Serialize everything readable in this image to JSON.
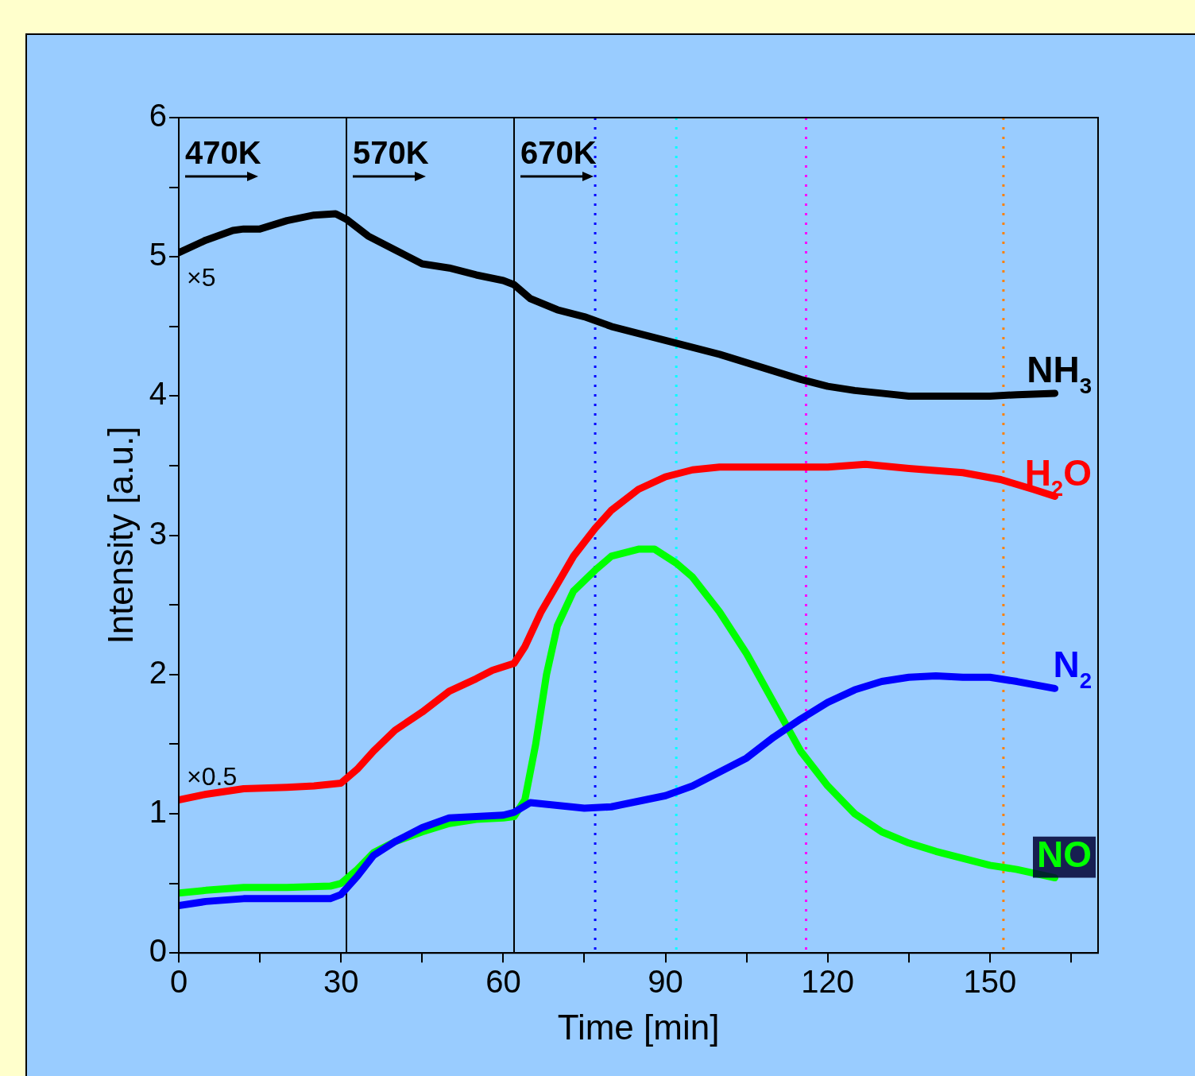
{
  "chart_data": {
    "type": "line",
    "xlabel": "Time [min]",
    "ylabel": "Intensity [a.u.]",
    "xlim": [
      0,
      170
    ],
    "xticks": [
      0,
      {
        "value": 15,
        "label": null
      },
      30,
      {
        "value": 45,
        "label": null
      },
      60,
      {
        "value": 75,
        "label": null
      },
      90,
      {
        "value": 105,
        "label": null
      },
      120,
      {
        "value": 135,
        "label": null
      },
      150,
      {
        "value": 165,
        "label": null
      }
    ],
    "ylim": [
      0,
      6
    ],
    "yticks": [
      0,
      {
        "value": 0.5,
        "label": null
      },
      1,
      {
        "value": 1.5,
        "label": null
      },
      2,
      {
        "value": 2.5,
        "label": null
      },
      3,
      {
        "value": 3.5,
        "label": null
      },
      4,
      {
        "value": 4.5,
        "label": null
      },
      5,
      {
        "value": 5.5,
        "label": null
      },
      6
    ],
    "grid": false,
    "legend": false,
    "marker": "none",
    "line_style": "solid",
    "series": [
      {
        "name": "NH$_{3}$",
        "color": "#000000",
        "x": [
          0,
          5,
          10,
          12,
          15,
          20,
          25,
          29,
          31,
          35,
          40,
          45,
          50,
          55,
          60,
          62,
          65,
          70,
          75,
          80,
          85,
          90,
          95,
          100,
          105,
          110,
          115,
          120,
          125,
          130,
          135,
          140,
          145,
          150,
          155,
          162
        ],
        "values": [
          5.03,
          5.12,
          5.19,
          5.2,
          5.2,
          5.26,
          5.3,
          5.31,
          5.27,
          5.15,
          5.05,
          4.95,
          4.92,
          4.87,
          4.83,
          4.8,
          4.7,
          4.62,
          4.57,
          4.5,
          4.45,
          4.4,
          4.35,
          4.3,
          4.24,
          4.18,
          4.12,
          4.07,
          4.04,
          4.02,
          4.0,
          4.0,
          4.0,
          4.0,
          4.01,
          4.02
        ]
      },
      {
        "name": "H$_{2}$O",
        "color": "#ff0000",
        "x": [
          0,
          5,
          12,
          20,
          25,
          30,
          33,
          36,
          40,
          45,
          50,
          55,
          58,
          62,
          64,
          67,
          70,
          73,
          77,
          80,
          85,
          90,
          95,
          100,
          110,
          120,
          127,
          135,
          145,
          152,
          158,
          162
        ],
        "values": [
          1.1,
          1.14,
          1.18,
          1.19,
          1.2,
          1.22,
          1.32,
          1.45,
          1.6,
          1.73,
          1.88,
          1.97,
          2.03,
          2.08,
          2.2,
          2.45,
          2.65,
          2.85,
          3.05,
          3.18,
          3.33,
          3.42,
          3.47,
          3.49,
          3.49,
          3.49,
          3.51,
          3.48,
          3.45,
          3.4,
          3.33,
          3.28
        ]
      },
      {
        "name": "N$_{2}$",
        "color": "#0000ff",
        "x": [
          0,
          5,
          12,
          20,
          28,
          30,
          33,
          36,
          40,
          45,
          50,
          55,
          60,
          62,
          65,
          70,
          75,
          80,
          85,
          90,
          95,
          100,
          105,
          110,
          115,
          120,
          125,
          130,
          135,
          140,
          145,
          150,
          155,
          162
        ],
        "values": [
          0.34,
          0.37,
          0.39,
          0.39,
          0.39,
          0.42,
          0.55,
          0.7,
          0.8,
          0.9,
          0.97,
          0.98,
          0.99,
          1.01,
          1.08,
          1.06,
          1.04,
          1.05,
          1.09,
          1.13,
          1.2,
          1.3,
          1.4,
          1.55,
          1.68,
          1.8,
          1.89,
          1.95,
          1.98,
          1.99,
          1.98,
          1.98,
          1.95,
          1.9
        ]
      },
      {
        "name": "NO",
        "color": "#00ff00",
        "x": [
          0,
          5,
          12,
          20,
          28,
          30,
          33,
          36,
          40,
          45,
          50,
          55,
          60,
          62,
          64,
          66,
          68,
          70,
          73,
          77,
          80,
          85,
          88,
          92,
          95,
          100,
          105,
          110,
          115,
          120,
          125,
          130,
          135,
          140,
          145,
          150,
          155,
          162
        ],
        "values": [
          0.43,
          0.45,
          0.47,
          0.47,
          0.48,
          0.5,
          0.6,
          0.72,
          0.8,
          0.87,
          0.93,
          0.96,
          0.97,
          0.98,
          1.1,
          1.5,
          2.0,
          2.35,
          2.6,
          2.75,
          2.85,
          2.9,
          2.9,
          2.8,
          2.7,
          2.45,
          2.15,
          1.8,
          1.45,
          1.2,
          1.0,
          0.87,
          0.79,
          0.73,
          0.68,
          0.63,
          0.6,
          0.54
        ]
      }
    ],
    "ref_lines": [
      {
        "axis": "x",
        "value": 31,
        "color": "#000000",
        "line_style": "solid"
      },
      {
        "axis": "x",
        "value": 62,
        "color": "#000000",
        "line_style": "solid"
      },
      {
        "axis": "x",
        "value": 77,
        "color": "#0000ff",
        "line_style": "dotted"
      },
      {
        "axis": "x",
        "value": 92,
        "color": "#00ffff",
        "line_style": "dotted"
      },
      {
        "axis": "x",
        "value": 116,
        "color": "#ff00ff",
        "line_style": "dotted"
      },
      {
        "axis": "x",
        "value": 152.5,
        "color": "#ff8000",
        "line_style": "dotted"
      }
    ],
    "annotations": [
      "470K",
      "570K",
      "670K",
      "×5",
      "×0.5"
    ]
  }
}
